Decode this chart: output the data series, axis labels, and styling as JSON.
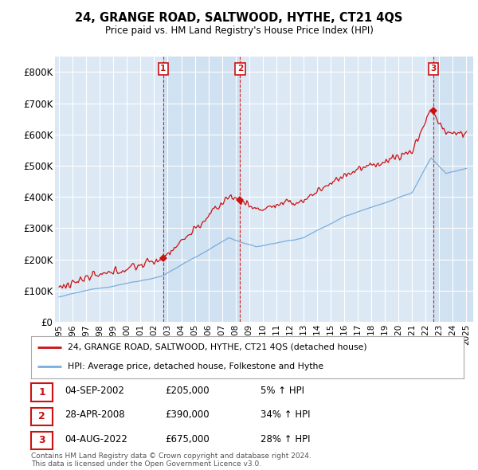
{
  "title": "24, GRANGE ROAD, SALTWOOD, HYTHE, CT21 4QS",
  "subtitle": "Price paid vs. HM Land Registry's House Price Index (HPI)",
  "ylim": [
    0,
    850000
  ],
  "yticks": [
    0,
    100000,
    200000,
    300000,
    400000,
    500000,
    600000,
    700000,
    800000
  ],
  "ytick_labels": [
    "£0",
    "£100K",
    "£200K",
    "£300K",
    "£400K",
    "£500K",
    "£600K",
    "£700K",
    "£800K"
  ],
  "hpi_color": "#7aaddc",
  "price_color": "#cc1111",
  "dashed_color": "#cc1111",
  "shade_color": "#ccdff0",
  "bg_color": "#dce9f5",
  "plot_bg": "#ffffff",
  "grid_color": "#ffffff",
  "transactions": [
    {
      "date_num": 2002.67,
      "price": 205000,
      "label": "1"
    },
    {
      "date_num": 2008.33,
      "price": 390000,
      "label": "2"
    },
    {
      "date_num": 2022.58,
      "price": 675000,
      "label": "3"
    }
  ],
  "transaction_dates_str": [
    "04-SEP-2002",
    "28-APR-2008",
    "04-AUG-2022"
  ],
  "transaction_prices_str": [
    "£205,000",
    "£390,000",
    "£675,000"
  ],
  "transaction_pcts": [
    "5% ↑ HPI",
    "34% ↑ HPI",
    "28% ↑ HPI"
  ],
  "legend_line1": "24, GRANGE ROAD, SALTWOOD, HYTHE, CT21 4QS (detached house)",
  "legend_line2": "HPI: Average price, detached house, Folkestone and Hythe",
  "footnote": "Contains HM Land Registry data © Crown copyright and database right 2024.\nThis data is licensed under the Open Government Licence v3.0.",
  "xlim_start": 1994.7,
  "xlim_end": 2025.5,
  "xticks": [
    1995,
    1996,
    1997,
    1998,
    1999,
    2000,
    2001,
    2002,
    2003,
    2004,
    2005,
    2006,
    2007,
    2008,
    2009,
    2010,
    2011,
    2012,
    2013,
    2014,
    2015,
    2016,
    2017,
    2018,
    2019,
    2020,
    2021,
    2022,
    2023,
    2024,
    2025
  ]
}
